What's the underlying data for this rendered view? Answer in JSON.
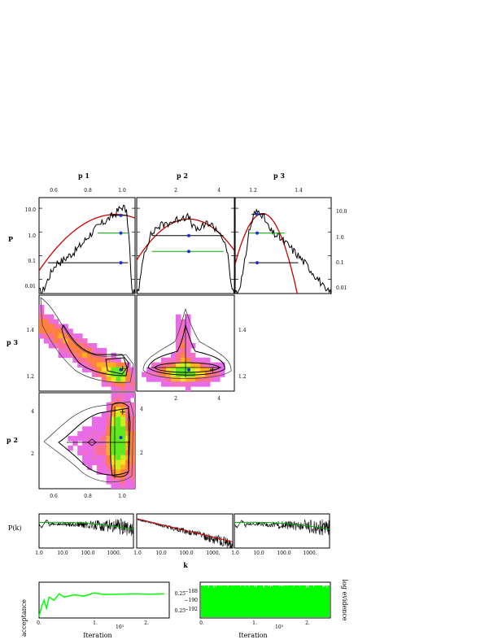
{
  "colors": {
    "black": "#000000",
    "red": "#cc0000",
    "green": "#00aa00",
    "bright_green": "#00ff00",
    "blue": "#1a33cc",
    "purple": "#6a2ea0",
    "density_palette": [
      "#e86be8",
      "#f070c8",
      "#ff7090",
      "#ff8040",
      "#ffb020",
      "#ffe020",
      "#c8f020",
      "#60e820"
    ]
  },
  "labels": {
    "col_p1": "p 1",
    "col_p2": "p 2",
    "col_p3": "p 3",
    "row_P": "P",
    "row_p3": "p 3",
    "row_p2": "p 2",
    "pk_ylabel": "P(k)",
    "pk_xlabel": "k",
    "acc_ylabel": "acceptance",
    "acc_xlabel": "Iteration",
    "acc_xscale": "10³",
    "ev_xlabel": "Iteration",
    "ev_xscale": "10³",
    "ev_ylabel": "log evidence"
  },
  "chart_data": [
    {
      "type": "line",
      "panel": "marginal p1",
      "xticks": [
        "0.6",
        "0.8",
        "1.0"
      ],
      "yticks": [
        "10.0",
        "1.0",
        "0.1",
        "0.01"
      ],
      "xlim": [
        0.5,
        1.04
      ],
      "ylim_log10": [
        -2.6,
        1.45
      ],
      "series": [
        {
          "role": "histogram",
          "x": [
            0.52,
            0.55,
            0.58,
            0.6,
            0.63,
            0.66,
            0.7,
            0.74,
            0.78,
            0.82,
            0.86,
            0.9,
            0.93,
            0.95,
            0.97,
            0.99,
            1.0,
            1.01,
            1.02
          ],
          "y": [
            0.003,
            0.01,
            0.03,
            0.05,
            0.06,
            0.09,
            0.15,
            0.3,
            0.7,
            1.4,
            2.5,
            4.0,
            6.0,
            9.0,
            12.0,
            8.0,
            2.0,
            0.2,
            0.003
          ]
        },
        {
          "role": "gaussian fit",
          "mean": 0.93,
          "sigma": 0.13,
          "peak": 5.5
        },
        {
          "role": "interval",
          "y": 0.05,
          "x": [
            0.55,
            1.0
          ],
          "point": 0.96
        },
        {
          "role": "interval",
          "y": 0.9,
          "x": [
            0.83,
            1.0
          ],
          "point": 0.96
        },
        {
          "role": "interval",
          "y": 5.0,
          "x": [
            0.9,
            1.0
          ],
          "point": 0.96
        }
      ]
    },
    {
      "type": "line",
      "panel": "marginal p2",
      "xticks": [
        "2",
        "4"
      ],
      "xlim": [
        0.0,
        4.5
      ],
      "ylim_log10": [
        -2.6,
        1.45
      ],
      "series": [
        {
          "role": "histogram",
          "x": [
            0.1,
            0.3,
            0.6,
            0.9,
            1.2,
            1.5,
            1.8,
            2.1,
            2.4,
            2.7,
            3.0,
            3.3,
            3.6,
            3.9,
            4.2,
            4.4
          ],
          "y": [
            0.003,
            0.1,
            0.6,
            1.5,
            2.0,
            2.5,
            3.0,
            4.5,
            4.0,
            1.2,
            1.5,
            2.5,
            1.5,
            0.8,
            0.1,
            0.003
          ]
        },
        {
          "role": "gaussian fit",
          "mean": 2.4,
          "sigma": 0.85,
          "peak": 3.5
        },
        {
          "role": "interval",
          "y": 0.7,
          "x": [
            0.7,
            4.0
          ],
          "point": 2.4
        },
        {
          "role": "interval",
          "y": 0.15,
          "x": [
            0.7,
            4.0
          ],
          "point": 2.4
        }
      ]
    },
    {
      "type": "line",
      "panel": "marginal p3",
      "xticks": [
        "1.2",
        "1.4"
      ],
      "yticks": [
        "10.0",
        "1.0",
        "0.1",
        "0.01"
      ],
      "xlim": [
        1.17,
        1.52
      ],
      "ylim_log10": [
        -2.6,
        1.45
      ],
      "series": [
        {
          "role": "histogram",
          "x": [
            1.18,
            1.2,
            1.22,
            1.24,
            1.26,
            1.28,
            1.3,
            1.33,
            1.36,
            1.4,
            1.44,
            1.48,
            1.5
          ],
          "y": [
            0.003,
            0.02,
            1.0,
            6.0,
            8.0,
            3.0,
            1.0,
            0.6,
            0.3,
            0.1,
            0.03,
            0.008,
            0.003
          ]
        },
        {
          "role": "gaussian fit",
          "mean": 1.27,
          "sigma": 0.032,
          "peak": 6.0
        },
        {
          "role": "interval",
          "y": 0.05,
          "x": [
            1.22,
            1.4
          ],
          "point": 1.25
        },
        {
          "role": "interval",
          "y": 0.9,
          "x": [
            1.22,
            1.35
          ],
          "point": 1.25
        },
        {
          "role": "interval",
          "y": 5.5,
          "x": [
            1.23,
            1.28
          ],
          "point": 1.25
        }
      ]
    },
    {
      "type": "heatmap",
      "panel": "p3 vs p1",
      "xlim": [
        0.5,
        1.04
      ],
      "ylim": [
        1.16,
        1.52
      ],
      "yticks": [
        "1.4",
        "1.2"
      ],
      "mode": [
        0.96,
        1.24
      ],
      "best_fit": [
        0.97,
        1.245
      ]
    },
    {
      "type": "heatmap",
      "panel": "p3 vs p2",
      "xlim": [
        0.0,
        4.5
      ],
      "ylim": [
        1.16,
        1.52
      ],
      "xticks": [
        "2",
        "4"
      ],
      "yticks": [
        "1.4",
        "1.2"
      ],
      "mode": [
        2.4,
        1.24
      ],
      "best_fit": [
        3.5,
        1.24
      ]
    },
    {
      "type": "heatmap",
      "panel": "p2 vs p1",
      "xlim": [
        0.5,
        1.04
      ],
      "ylim": [
        0.0,
        4.5
      ],
      "xticks": [
        "0.6",
        "0.8",
        "1.0"
      ],
      "yticks": [
        "4",
        "2"
      ],
      "mode": [
        0.96,
        2.4
      ],
      "best_fit": [
        0.97,
        3.6
      ]
    },
    {
      "type": "line",
      "panel": "P(k) residuals",
      "xscale": "log",
      "xticks": [
        "1.0",
        "10.0",
        "100.0",
        "1000."
      ],
      "xlim": [
        1,
        4000
      ],
      "subplots": [
        "flat spectrum",
        "declining spectrum",
        "flat spectrum"
      ]
    },
    {
      "type": "line",
      "panel": "acceptance",
      "xticks": [
        "0.",
        "1.",
        "2."
      ],
      "xlim": [
        0,
        2.6
      ],
      "ytick_top": "0.25",
      "ytick_bottom": "0.25",
      "x": [
        0.0,
        0.05,
        0.1,
        0.15,
        0.2,
        0.3,
        0.4,
        0.5,
        0.7,
        0.9,
        1.1,
        1.3,
        1.6,
        1.9,
        2.2,
        2.5
      ],
      "y": [
        0.05,
        0.35,
        0.55,
        0.3,
        0.65,
        0.55,
        0.75,
        0.65,
        0.72,
        0.68,
        0.78,
        0.73,
        0.74,
        0.75,
        0.74,
        0.75
      ]
    },
    {
      "type": "area",
      "panel": "log evidence",
      "xticks": [
        "0.",
        "1.",
        "2."
      ],
      "xlim": [
        0,
        2.6
      ],
      "yticks": [
        "−188",
        "−190",
        "−192"
      ]
    }
  ]
}
